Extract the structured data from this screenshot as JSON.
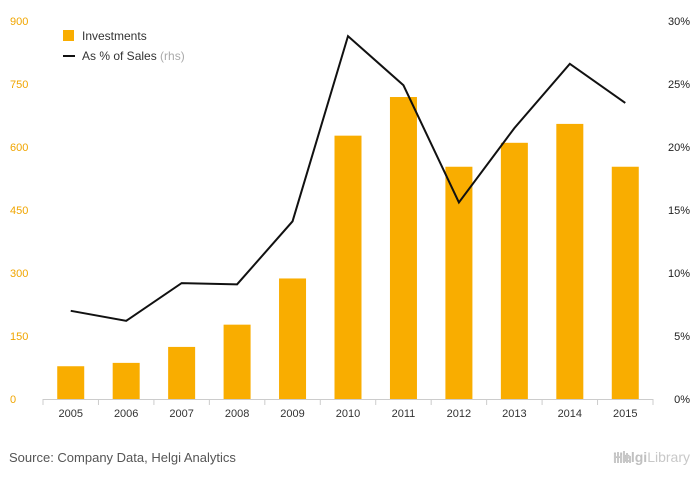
{
  "chart_data": {
    "type": "bar",
    "categories": [
      "2005",
      "2006",
      "2007",
      "2008",
      "2009",
      "2010",
      "2011",
      "2012",
      "2013",
      "2014",
      "2015"
    ],
    "series": [
      {
        "name": "Investments",
        "kind": "bar",
        "axis": "left",
        "color": "#f9ad00",
        "values": [
          78,
          86,
          124,
          177,
          287,
          627,
          719,
          553,
          610,
          655,
          553
        ]
      },
      {
        "name": "As % of Sales",
        "note": "(rhs)",
        "kind": "line",
        "axis": "right",
        "color": "#111111",
        "values": [
          7.0,
          6.2,
          9.2,
          9.1,
          14.1,
          28.8,
          24.9,
          15.6,
          21.5,
          26.6,
          23.5
        ]
      }
    ],
    "y_left": {
      "min": 0,
      "max": 900,
      "ticks": [
        "0",
        "150",
        "300",
        "450",
        "600",
        "750",
        "900"
      ]
    },
    "y_right": {
      "min": 0,
      "max": 30,
      "ticks": [
        "0%",
        "5%",
        "10%",
        "15%",
        "20%",
        "25%",
        "30%"
      ]
    },
    "grid": false,
    "legend": "top-left"
  },
  "footer": {
    "source": "Source: Company Data, Helgi Analytics",
    "logo_prefix": "Helgi",
    "logo_suffix": "Library"
  }
}
